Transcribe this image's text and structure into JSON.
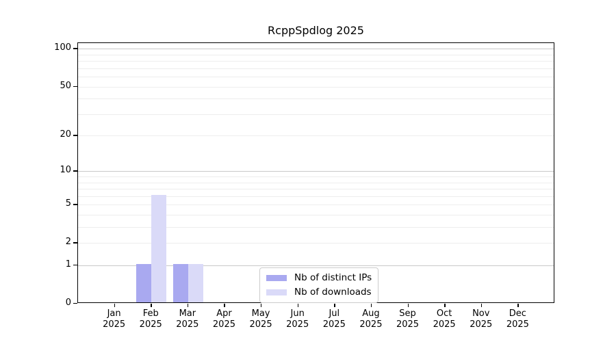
{
  "chart_data": {
    "type": "bar",
    "title": "RcppSpdlog 2025",
    "x_year": "2025",
    "categories": [
      "Jan",
      "Feb",
      "Mar",
      "Apr",
      "May",
      "Jun",
      "Jul",
      "Aug",
      "Sep",
      "Oct",
      "Nov",
      "Dec"
    ],
    "series": [
      {
        "name": "Nb of distinct IPs",
        "color": "#a9a9f0",
        "values": [
          0,
          1,
          1,
          0,
          0,
          0,
          0,
          0,
          0,
          0,
          0,
          0
        ]
      },
      {
        "name": "Nb of downloads",
        "color": "#dadaf8",
        "values": [
          0,
          6,
          1,
          0,
          0,
          0,
          0,
          0,
          0,
          0,
          0,
          0
        ]
      }
    ],
    "y_ticks": [
      0,
      1,
      2,
      5,
      10,
      20,
      50,
      100
    ],
    "y_scale": "log10(value+1)",
    "ylim": [
      0,
      111
    ],
    "xlabel": "",
    "ylabel": "",
    "grid": {
      "orientation": "horizontal",
      "major_values": [
        1,
        10,
        100
      ],
      "minor_values": [
        2,
        3,
        4,
        5,
        6,
        7,
        8,
        9,
        20,
        30,
        40,
        50,
        60,
        70,
        80,
        90
      ],
      "major_color": "#c8c8c8",
      "minor_color": "#ededed"
    },
    "legend_position": "bottom-center",
    "axis_color": "#000000",
    "background_color": "#ffffff"
  }
}
